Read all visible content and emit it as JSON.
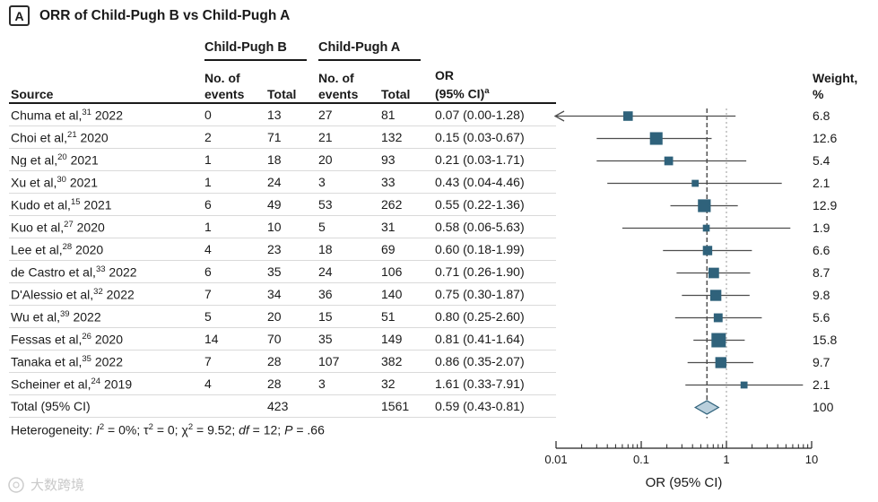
{
  "panel_label": "A",
  "title": "ORR of Child-Pugh B vs Child-Pugh A",
  "table": {
    "group_headers": [
      "Child-Pugh B",
      "Child-Pugh A"
    ],
    "col_headers": {
      "source": "Source",
      "events": "No. of events",
      "total": "Total",
      "or": "OR (95% CI)",
      "or_sup": "a",
      "weight": "Weight, %"
    },
    "heterogeneity_segments": [
      {
        "t": "Heterogeneity: "
      },
      {
        "t": "I",
        "italic": true
      },
      {
        "t": "2",
        "sup": true
      },
      {
        "t": " = 0%; τ"
      },
      {
        "t": "2",
        "sup": true
      },
      {
        "t": " = 0; χ"
      },
      {
        "t": "2",
        "sup": true
      },
      {
        "t": " = 9.52; "
      },
      {
        "t": "df",
        "italic": true
      },
      {
        "t": " = 12; "
      },
      {
        "t": "P",
        "italic": true
      },
      {
        "t": " = .66"
      }
    ]
  },
  "chart_data": {
    "type": "forest",
    "x_axis": {
      "scale": "log",
      "range": [
        0.01,
        10
      ],
      "tick_values": [
        0.01,
        0.1,
        1,
        10
      ],
      "ticks": [
        "0.01",
        "0.1",
        "1",
        "10"
      ],
      "label": "OR (95% CI)"
    },
    "reference_line": 1.0,
    "pooled_or_line": 0.59,
    "marker_color": "#2f627b",
    "diamond_fill": "#b9cfdc",
    "ci_line_color": "#4d4d4d",
    "studies": [
      {
        "source": "Chuma et al,",
        "ref": "31",
        "year": "2022",
        "events_b": "0",
        "total_b": "13",
        "events_a": "27",
        "total_a": "81",
        "or": 0.07,
        "ci_low": 0.0,
        "ci_high": 1.28,
        "or_label": "0.07 (0.00-1.28)",
        "weight": 6.8,
        "arrow_left": true
      },
      {
        "source": "Choi et al,",
        "ref": "21",
        "year": "2020",
        "events_b": "2",
        "total_b": "71",
        "events_a": "21",
        "total_a": "132",
        "or": 0.15,
        "ci_low": 0.03,
        "ci_high": 0.67,
        "or_label": "0.15 (0.03-0.67)",
        "weight": 12.6
      },
      {
        "source": "Ng et al,",
        "ref": "20",
        "year": "2021",
        "events_b": "1",
        "total_b": "18",
        "events_a": "20",
        "total_a": "93",
        "or": 0.21,
        "ci_low": 0.03,
        "ci_high": 1.71,
        "or_label": "0.21 (0.03-1.71)",
        "weight": 5.4
      },
      {
        "source": "Xu et al,",
        "ref": "30",
        "year": "2021",
        "events_b": "1",
        "total_b": "24",
        "events_a": "3",
        "total_a": "33",
        "or": 0.43,
        "ci_low": 0.04,
        "ci_high": 4.46,
        "or_label": "0.43 (0.04-4.46)",
        "weight": 2.1
      },
      {
        "source": "Kudo et al,",
        "ref": "15",
        "year": "2021",
        "events_b": "6",
        "total_b": "49",
        "events_a": "53",
        "total_a": "262",
        "or": 0.55,
        "ci_low": 0.22,
        "ci_high": 1.36,
        "or_label": "0.55 (0.22-1.36)",
        "weight": 12.9
      },
      {
        "source": "Kuo et al,",
        "ref": "27",
        "year": "2020",
        "events_b": "1",
        "total_b": "10",
        "events_a": "5",
        "total_a": "31",
        "or": 0.58,
        "ci_low": 0.06,
        "ci_high": 5.63,
        "or_label": "0.58 (0.06-5.63)",
        "weight": 1.9
      },
      {
        "source": "Lee et al,",
        "ref": "28",
        "year": "2020",
        "events_b": "4",
        "total_b": "23",
        "events_a": "18",
        "total_a": "69",
        "or": 0.6,
        "ci_low": 0.18,
        "ci_high": 1.99,
        "or_label": "0.60 (0.18-1.99)",
        "weight": 6.6
      },
      {
        "source": "de Castro et al,",
        "ref": "33",
        "year": "2022",
        "events_b": "6",
        "total_b": "35",
        "events_a": "24",
        "total_a": "106",
        "or": 0.71,
        "ci_low": 0.26,
        "ci_high": 1.9,
        "or_label": "0.71 (0.26-1.90)",
        "weight": 8.7
      },
      {
        "source": "D'Alessio et al,",
        "ref": "32",
        "year": "2022",
        "events_b": "7",
        "total_b": "34",
        "events_a": "36",
        "total_a": "140",
        "or": 0.75,
        "ci_low": 0.3,
        "ci_high": 1.87,
        "or_label": "0.75 (0.30-1.87)",
        "weight": 9.8
      },
      {
        "source": "Wu et al,",
        "ref": "39",
        "year": "2022",
        "events_b": "5",
        "total_b": "20",
        "events_a": "15",
        "total_a": "51",
        "or": 0.8,
        "ci_low": 0.25,
        "ci_high": 2.6,
        "or_label": "0.80 (0.25-2.60)",
        "weight": 5.6
      },
      {
        "source": "Fessas et al,",
        "ref": "26",
        "year": "2020",
        "events_b": "14",
        "total_b": "70",
        "events_a": "35",
        "total_a": "149",
        "or": 0.81,
        "ci_low": 0.41,
        "ci_high": 1.64,
        "or_label": "0.81 (0.41-1.64)",
        "weight": 15.8
      },
      {
        "source": "Tanaka et al,",
        "ref": "35",
        "year": "2022",
        "events_b": "7",
        "total_b": "28",
        "events_a": "107",
        "total_a": "382",
        "or": 0.86,
        "ci_low": 0.35,
        "ci_high": 2.07,
        "or_label": "0.86 (0.35-2.07)",
        "weight": 9.7
      },
      {
        "source": "Scheiner et al,",
        "ref": "24",
        "year": "2019",
        "events_b": "4",
        "total_b": "28",
        "events_a": "3",
        "total_a": "32",
        "or": 1.61,
        "ci_low": 0.33,
        "ci_high": 7.91,
        "or_label": "1.61 (0.33-7.91)",
        "weight": 2.1
      }
    ],
    "total": {
      "label": "Total (95% CI)",
      "total_b": "423",
      "total_a": "1561",
      "or": 0.59,
      "ci_low": 0.43,
      "ci_high": 0.81,
      "or_label": "0.59 (0.43-0.81)",
      "weight": 100
    }
  },
  "watermark": {
    "text": "大数跨境"
  }
}
